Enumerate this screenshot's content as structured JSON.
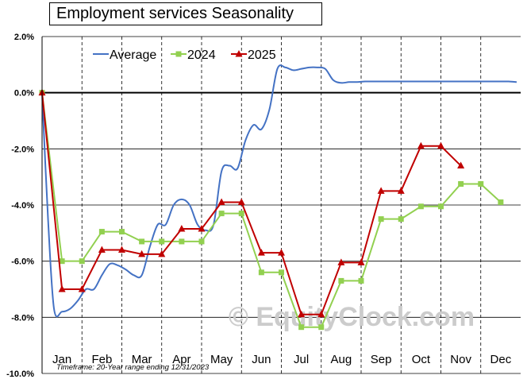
{
  "chart_data": {
    "type": "line",
    "title": "Employment services Seasonality",
    "footnote": "Timeframe: 20-Year range ending 12/31/2023",
    "watermark": "© EquityClock.com",
    "xlabel": "",
    "ylabel": "",
    "ylim": [
      -10,
      2
    ],
    "yticks": [
      2,
      0,
      -2,
      -4,
      -6,
      -8,
      -10
    ],
    "ytick_labels": [
      "2.0%",
      "0.0%",
      "-2.0%",
      "-4.0%",
      "-6.0%",
      "-8.0%",
      "-10.0%"
    ],
    "categories": [
      "Jan",
      "Feb",
      "Mar",
      "Apr",
      "May",
      "Jun",
      "Jul",
      "Aug",
      "Sep",
      "Oct",
      "Nov",
      "Dec"
    ],
    "legend": {
      "position": "top-left",
      "entries": [
        "Average",
        "2024",
        "2025"
      ]
    },
    "grid": true,
    "series": [
      {
        "name": "Average",
        "color": "#4472C4",
        "marker": "none",
        "x": [
          0,
          0.15,
          0.3,
          0.5,
          0.7,
          0.9,
          1.1,
          1.3,
          1.5,
          1.7,
          1.9,
          2.1,
          2.3,
          2.5,
          2.7,
          2.9,
          3.1,
          3.3,
          3.5,
          3.7,
          3.9,
          4.1,
          4.3,
          4.5,
          4.7,
          4.9,
          5.1,
          5.3,
          5.5,
          5.7,
          5.9,
          6.1,
          6.3,
          6.5,
          6.7,
          6.9,
          7.1,
          7.3,
          7.5,
          7.7,
          7.9,
          8.1,
          8.3,
          8.5,
          8.7,
          8.9,
          9.1,
          9.3,
          9.5,
          9.7,
          9.9,
          10.1,
          10.3,
          10.5,
          10.7,
          10.9,
          11.1,
          11.3,
          11.5,
          11.7,
          11.9
        ],
        "y": [
          0.0,
          -4.5,
          -7.7,
          -7.8,
          -7.7,
          -7.4,
          -7.0,
          -7.0,
          -6.5,
          -6.1,
          -6.15,
          -6.3,
          -6.5,
          -6.5,
          -5.5,
          -4.7,
          -4.7,
          -4.0,
          -3.8,
          -4.0,
          -4.7,
          -4.9,
          -4.7,
          -2.8,
          -2.6,
          -2.7,
          -1.7,
          -1.15,
          -1.3,
          -0.6,
          0.85,
          0.9,
          0.8,
          0.85,
          0.9,
          0.9,
          0.85,
          0.45,
          0.35,
          0.38,
          0.38,
          0.4,
          0.4,
          0.4,
          0.4,
          0.4,
          0.4,
          0.4,
          0.4,
          0.4,
          0.4,
          0.4,
          0.4,
          0.4,
          0.4,
          0.4,
          0.4,
          0.4,
          0.4,
          0.4,
          0.38
        ]
      },
      {
        "name": "2024",
        "color": "#92D050",
        "marker": "square",
        "x": [
          0,
          0.5,
          1.0,
          1.5,
          2.0,
          2.5,
          3.0,
          3.5,
          4.0,
          4.5,
          5.0,
          5.5,
          6.0,
          6.5,
          7.0,
          7.5,
          8.0,
          8.5,
          9.0,
          9.5,
          10.0,
          10.5,
          11.0,
          11.5
        ],
        "y": [
          0.0,
          -6.0,
          -6.0,
          -4.95,
          -4.95,
          -5.3,
          -5.3,
          -5.3,
          -5.3,
          -4.3,
          -4.3,
          -6.4,
          -6.4,
          -8.35,
          -8.35,
          -6.7,
          -6.7,
          -4.5,
          -4.5,
          -4.05,
          -4.05,
          -3.25,
          -3.25,
          -3.9
        ]
      },
      {
        "name": "2025",
        "color": "#C00000",
        "marker": "triangle",
        "x": [
          0,
          0.5,
          1.0,
          1.5,
          2.0,
          2.5,
          3.0,
          3.5,
          4.0,
          4.5,
          5.0,
          5.5,
          6.0,
          6.5,
          7.0,
          7.5,
          8.0,
          8.5,
          9.0,
          9.5,
          10.0,
          10.5
        ],
        "y": [
          0.0,
          -7.0,
          -7.0,
          -5.6,
          -5.6,
          -5.75,
          -5.75,
          -4.85,
          -4.85,
          -3.9,
          -3.9,
          -5.7,
          -5.7,
          -7.9,
          -7.9,
          -6.05,
          -6.05,
          -3.5,
          -3.5,
          -1.9,
          -1.9,
          -2.6
        ]
      }
    ]
  }
}
